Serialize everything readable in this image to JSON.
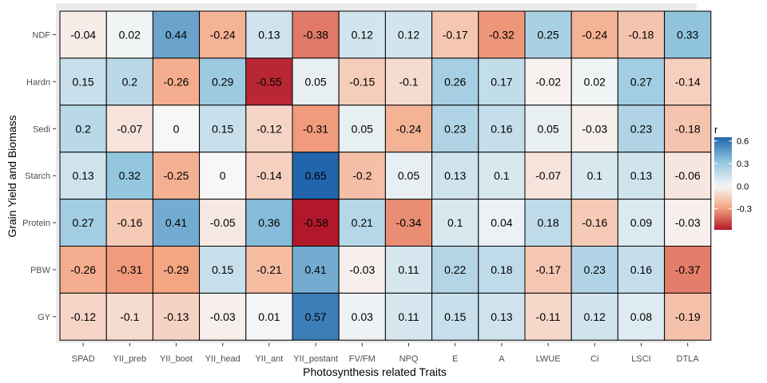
{
  "chart_data": {
    "type": "heatmap",
    "title": "",
    "xlabel": "Photosynthesis related Traits",
    "ylabel": "Grain Yield and Biomass",
    "x_categories": [
      "SPAD",
      "YII_preb",
      "YII_boot",
      "YII_head",
      "YII_ant",
      "YII_postant",
      "FV/FM",
      "NPQ",
      "E",
      "A",
      "LWUE",
      "Ci",
      "LSCI",
      "DTLA"
    ],
    "y_categories": [
      "NDF",
      "Hardn",
      "Sedi",
      "Starch",
      "Protein",
      "PBW",
      "GY"
    ],
    "values": [
      [
        -0.04,
        0.02,
        0.44,
        -0.24,
        0.13,
        -0.38,
        0.12,
        0.12,
        -0.17,
        -0.32,
        0.25,
        -0.24,
        -0.18,
        0.33
      ],
      [
        0.15,
        0.2,
        -0.26,
        0.29,
        -0.55,
        0.05,
        -0.15,
        -0.1,
        0.26,
        0.17,
        -0.02,
        0.02,
        0.27,
        -0.14
      ],
      [
        0.2,
        -0.07,
        0,
        0.15,
        -0.12,
        -0.31,
        0.05,
        -0.24,
        0.23,
        0.16,
        0.05,
        -0.03,
        0.23,
        -0.18
      ],
      [
        0.13,
        0.32,
        -0.25,
        0,
        -0.14,
        0.65,
        -0.2,
        0.05,
        0.13,
        0.1,
        -0.07,
        0.1,
        0.13,
        -0.06
      ],
      [
        0.27,
        -0.16,
        0.41,
        -0.05,
        0.36,
        -0.58,
        0.21,
        -0.34,
        0.1,
        0.04,
        0.18,
        -0.16,
        0.09,
        -0.03
      ],
      [
        -0.26,
        -0.31,
        -0.29,
        0.15,
        -0.21,
        0.41,
        -0.03,
        0.11,
        0.22,
        0.18,
        -0.17,
        0.23,
        0.16,
        -0.37
      ],
      [
        -0.12,
        -0.1,
        -0.13,
        -0.03,
        0.01,
        0.57,
        0.03,
        0.11,
        0.15,
        0.13,
        -0.11,
        0.12,
        0.08,
        -0.19
      ]
    ],
    "value_labels": [
      [
        "-0.04",
        "0.02",
        "0.44",
        "-0.24",
        "0.13",
        "-0.38",
        "0.12",
        "0.12",
        "-0.17",
        "-0.32",
        "0.25",
        "-0.24",
        "-0.18",
        "0.33"
      ],
      [
        "0.15",
        "0.2",
        "-0.26",
        "0.29",
        "-0.55",
        "0.05",
        "-0.15",
        "-0.1",
        "0.26",
        "0.17",
        "-0.02",
        "0.02",
        "0.27",
        "-0.14"
      ],
      [
        "0.2",
        "-0.07",
        "0",
        "0.15",
        "-0.12",
        "-0.31",
        "0.05",
        "-0.24",
        "0.23",
        "0.16",
        "0.05",
        "-0.03",
        "0.23",
        "-0.18"
      ],
      [
        "0.13",
        "0.32",
        "-0.25",
        "0",
        "-0.14",
        "0.65",
        "-0.2",
        "0.05",
        "0.13",
        "0.1",
        "-0.07",
        "0.1",
        "0.13",
        "-0.06"
      ],
      [
        "0.27",
        "-0.16",
        "0.41",
        "-0.05",
        "0.36",
        "-0.58",
        "0.21",
        "-0.34",
        "0.1",
        "0.04",
        "0.18",
        "-0.16",
        "0.09",
        "-0.03"
      ],
      [
        "-0.26",
        "-0.31",
        "-0.29",
        "0.15",
        "-0.21",
        "0.41",
        "-0.03",
        "0.11",
        "0.22",
        "0.18",
        "-0.17",
        "0.23",
        "0.16",
        "-0.37"
      ],
      [
        "-0.12",
        "-0.1",
        "-0.13",
        "-0.03",
        "0.01",
        "0.57",
        "0.03",
        "0.11",
        "0.15",
        "0.13",
        "-0.11",
        "0.12",
        "0.08",
        "-0.19"
      ]
    ],
    "legend": {
      "title": "r",
      "position": "right",
      "breaks": [
        0.6,
        0.3,
        0.0,
        -0.3
      ],
      "break_labels": [
        "0.6",
        "0.3",
        "0.0",
        "-0.3"
      ],
      "range": [
        -0.58,
        0.65
      ]
    },
    "colors": {
      "low": "#b2182b",
      "mid": "#f7f7f7",
      "high": "#2166ac",
      "panel_background": "#ebebeb"
    }
  }
}
